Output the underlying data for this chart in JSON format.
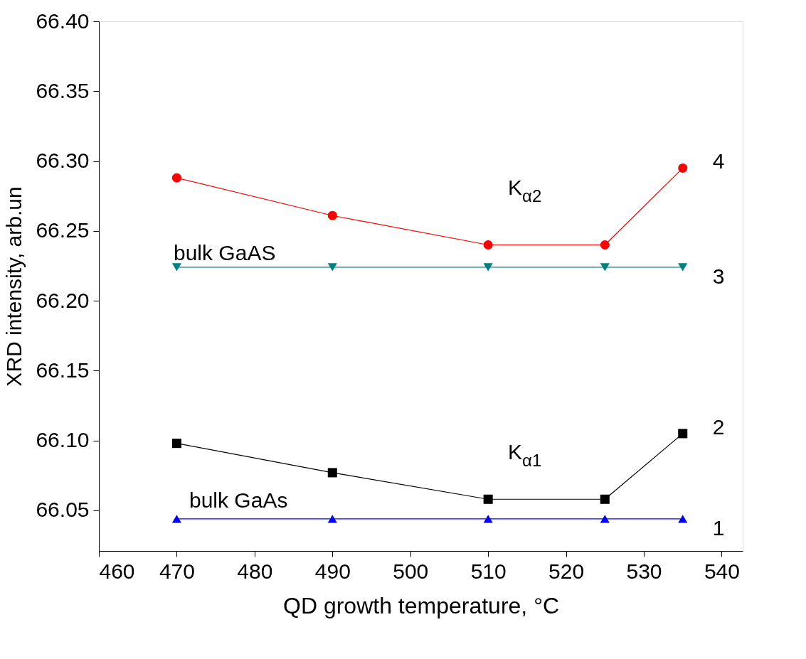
{
  "chart_data": {
    "type": "line",
    "xlabel": "QD growth temperature, °C",
    "ylabel": "XRD intensity, arb.un",
    "x": [
      470,
      490,
      510,
      525,
      535
    ],
    "series": [
      {
        "name": "1",
        "color": "#0000ff",
        "marker": "triangle-up",
        "values": [
          66.044,
          66.044,
          66.044,
          66.044,
          66.044
        ]
      },
      {
        "name": "2",
        "color": "#000000",
        "marker": "square",
        "values": [
          66.098,
          66.077,
          66.058,
          66.058,
          66.105
        ]
      },
      {
        "name": "3",
        "color": "#008080",
        "marker": "triangle-down",
        "values": [
          66.224,
          66.224,
          66.224,
          66.224,
          66.224
        ]
      },
      {
        "name": "4",
        "color": "#ff0000",
        "marker": "circle",
        "values": [
          66.288,
          66.261,
          66.24,
          66.24,
          66.295
        ]
      }
    ],
    "annotations": [
      "K$_{α2}$",
      "K$_{α1}$",
      "bulk GaAS",
      "bulk GaAs"
    ],
    "xlim": [
      460,
      542.7
    ],
    "xticks": [
      460,
      470,
      480,
      490,
      500,
      510,
      520,
      530,
      540
    ],
    "ylim": [
      66.021,
      66.4
    ],
    "yticks": [
      66.05,
      {
        "value": 66.1,
        "label": "66.10"
      },
      66.15,
      {
        "value": 66.2,
        "label": "66.20"
      },
      66.25,
      {
        "value": 66.3,
        "label": "66.30"
      },
      66.35,
      {
        "value": 66.4,
        "label": "66.40"
      }
    ],
    "line_style": "solid"
  }
}
